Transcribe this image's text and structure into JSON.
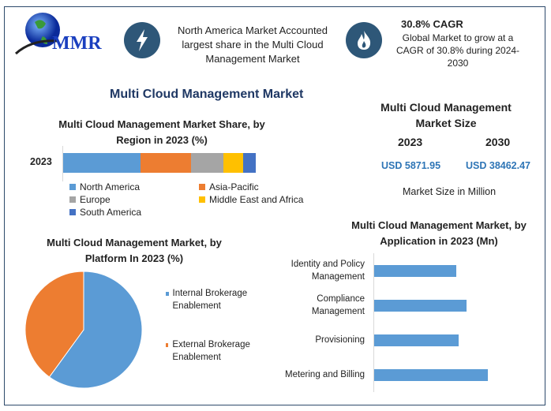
{
  "logo": {
    "text": "MMR"
  },
  "header": {
    "highlight1": "North America Market Accounted largest share in the Multi Cloud Management Market",
    "cagr_title": "30.8% CAGR",
    "cagr_text": "Global Market to grow at a CAGR of 30.8% during 2024-2030"
  },
  "main_title": "Multi Cloud Management Market",
  "market_size": {
    "title": "Multi Cloud Management Market Size",
    "year1": "2023",
    "year2": "2030",
    "value1": "USD 5871.95",
    "value2": "USD 38462.47",
    "unit": "Market Size in Million"
  },
  "colors": {
    "blue": "#5b9bd5",
    "orange": "#ed7d31",
    "gray": "#a5a5a5",
    "yellow": "#ffc000",
    "darkblue": "#4472c4",
    "navy": "#1f3864",
    "value_blue": "#2e75b6"
  },
  "chart_data": [
    {
      "type": "bar",
      "stacked": true,
      "orientation": "horizontal",
      "title": "Multi Cloud Management Market Share, by Region in 2023 (%)",
      "categories": [
        "2023"
      ],
      "series": [
        {
          "name": "North America",
          "values": [
            40.2
          ],
          "color": "#5b9bd5"
        },
        {
          "name": "Asia-Pacific",
          "values": [
            26.2
          ],
          "color": "#ed7d31"
        },
        {
          "name": "Europe",
          "values": [
            16.8
          ],
          "color": "#a5a5a5"
        },
        {
          "name": "Middle East and Africa",
          "values": [
            10.2
          ],
          "color": "#ffc000"
        },
        {
          "name": "South America",
          "values": [
            6.6
          ],
          "color": "#4472c4"
        }
      ],
      "legend": "bottom"
    },
    {
      "type": "pie",
      "title": "Multi Cloud Management Market, by Platform In 2023 (%)",
      "slices": [
        {
          "name": "Internal Brokerage Enablement",
          "value": 60,
          "color": "#5b9bd5"
        },
        {
          "name": "External Brokerage Enablement",
          "value": 40,
          "color": "#ed7d31"
        }
      ],
      "legend": "right"
    },
    {
      "type": "bar",
      "orientation": "horizontal",
      "title": "Multi Cloud Management Market, by Application in 2023 (Mn)",
      "categories": [
        "Identity and Policy Management",
        "Compliance Management",
        "Provisioning",
        "Metering and Billing"
      ],
      "values": [
        104,
        117,
        107,
        144
      ],
      "color": "#5b9bd5"
    }
  ]
}
